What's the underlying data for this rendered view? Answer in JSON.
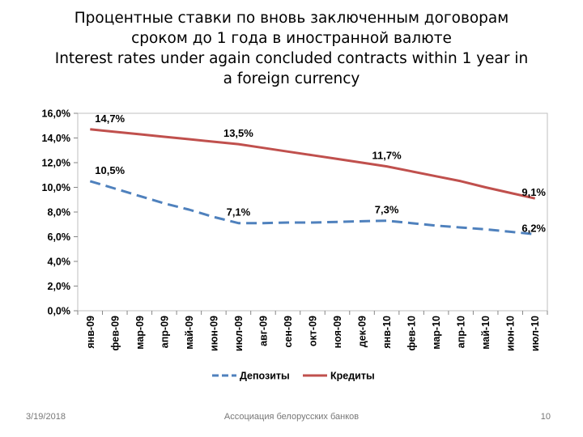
{
  "slide": {
    "title_lines": [
      "Процентные ставки по вновь заключенным договорам",
      "сроком до 1 года в иностранной валюте",
      "Interest rates under again concluded contracts within 1 year in",
      "a foreign currency"
    ],
    "footer": {
      "date": "3/19/2018",
      "organization": "Ассоциация белорусских банков",
      "page": "10"
    }
  },
  "chart_data": {
    "type": "line",
    "categories": [
      "янв-09",
      "фев-09",
      "мар-09",
      "апр-09",
      "май-09",
      "июн-09",
      "июл-09",
      "авг-09",
      "сен-09",
      "окт-09",
      "ноя-09",
      "дек-09",
      "янв-10",
      "фев-10",
      "мар-10",
      "апр-10",
      "май-10",
      "июн-10",
      "июл-10"
    ],
    "series": [
      {
        "name": "Депозиты",
        "color": "#4F81BD",
        "style": "dashed",
        "values": [
          10.5,
          9.9,
          9.3,
          8.7,
          8.2,
          7.6,
          7.1,
          7.1,
          7.15,
          7.15,
          7.2,
          7.25,
          7.3,
          7.1,
          6.9,
          6.75,
          6.6,
          6.4,
          6.2
        ],
        "labels": [
          {
            "index": 0,
            "text": "10,5%"
          },
          {
            "index": 6,
            "text": "7,1%"
          },
          {
            "index": 12,
            "text": "7,3%"
          },
          {
            "index": 18,
            "text": "6,2%"
          }
        ]
      },
      {
        "name": "Кредиты",
        "color": "#C0504D",
        "style": "solid",
        "values": [
          14.7,
          14.5,
          14.3,
          14.1,
          13.9,
          13.7,
          13.5,
          13.2,
          12.9,
          12.6,
          12.3,
          12.0,
          11.7,
          11.3,
          10.9,
          10.5,
          10.0,
          9.55,
          9.1
        ],
        "labels": [
          {
            "index": 0,
            "text": "14,7%"
          },
          {
            "index": 6,
            "text": "13,5%"
          },
          {
            "index": 12,
            "text": "11,7%"
          },
          {
            "index": 18,
            "text": "9,1%"
          }
        ]
      }
    ],
    "y_ticks": [
      "0,0%",
      "2,0%",
      "4,0%",
      "6,0%",
      "8,0%",
      "10,0%",
      "12,0%",
      "14,0%",
      "16,0%"
    ],
    "ylim": [
      0,
      16
    ],
    "legend": "bottom",
    "grid": false
  }
}
